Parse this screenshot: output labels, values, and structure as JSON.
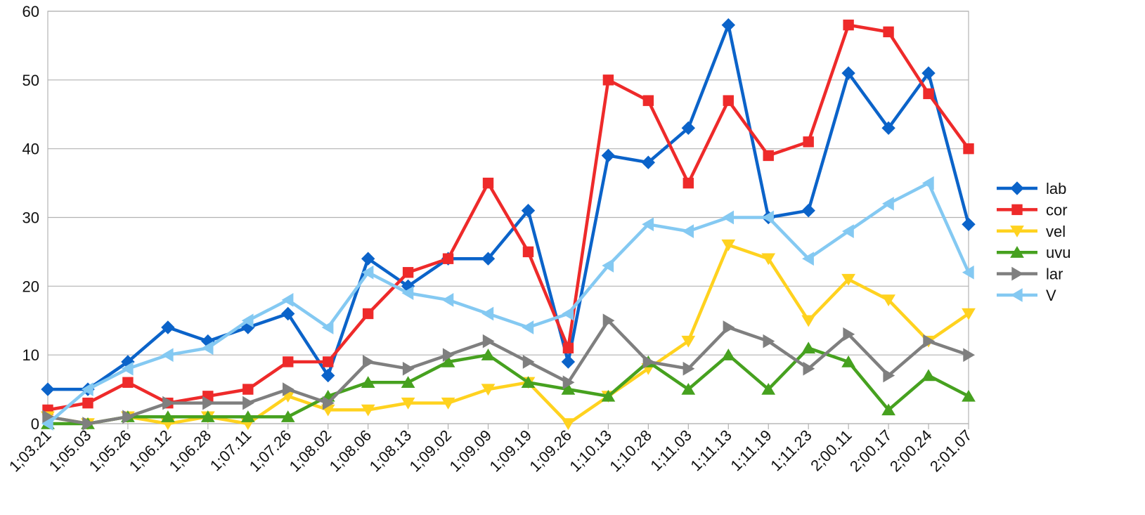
{
  "chart_data": {
    "type": "line",
    "title": "",
    "xlabel": "",
    "ylabel": "",
    "ylim": [
      0,
      60
    ],
    "yticks": [
      0,
      10,
      20,
      30,
      40,
      50,
      60
    ],
    "grid": "horizontal",
    "legend_position": "right",
    "categories": [
      "1;03.21",
      "1;05.03",
      "1;05.26",
      "1;06.12",
      "1;06.28",
      "1;07.11",
      "1;07.26",
      "1;08.02",
      "1;08.06",
      "1;08.13",
      "1;09.02",
      "1;09.09",
      "1;09.19",
      "1;09.26",
      "1;10.13",
      "1;10.28",
      "1;11.03",
      "1;11.13",
      "1;11.19",
      "1;11.23",
      "2;00.11",
      "2;00.17",
      "2;00.24",
      "2;01.07"
    ],
    "series": [
      {
        "name": "lab",
        "color": "#0b63c9",
        "marker": "diamond",
        "values": [
          5,
          5,
          9,
          14,
          12,
          14,
          16,
          7,
          24,
          20,
          24,
          24,
          31,
          9,
          39,
          38,
          43,
          58,
          30,
          31,
          51,
          43,
          51,
          29
        ]
      },
      {
        "name": "cor",
        "color": "#ee2a2a",
        "marker": "square",
        "values": [
          2,
          3,
          6,
          3,
          4,
          5,
          9,
          9,
          16,
          22,
          24,
          35,
          25,
          11,
          50,
          47,
          35,
          47,
          39,
          41,
          58,
          57,
          48,
          40
        ]
      },
      {
        "name": "vel",
        "color": "#ffd21f",
        "marker": "triangle-down",
        "values": [
          1,
          0,
          1,
          0,
          1,
          0,
          4,
          2,
          2,
          3,
          3,
          5,
          6,
          0,
          4,
          8,
          12,
          26,
          24,
          15,
          21,
          18,
          12,
          16
        ]
      },
      {
        "name": "uvu",
        "color": "#46a11f",
        "marker": "triangle-up",
        "values": [
          0,
          0,
          1,
          1,
          1,
          1,
          1,
          4,
          6,
          6,
          9,
          10,
          6,
          5,
          4,
          9,
          5,
          10,
          5,
          11,
          9,
          2,
          7,
          4
        ]
      },
      {
        "name": "lar",
        "color": "#7f7f7f",
        "marker": "triangle-right",
        "values": [
          1,
          0,
          1,
          3,
          3,
          3,
          5,
          3,
          9,
          8,
          10,
          12,
          9,
          6,
          15,
          9,
          8,
          14,
          12,
          8,
          13,
          7,
          12,
          10
        ]
      },
      {
        "name": "V",
        "color": "#84c9f2",
        "marker": "triangle-left",
        "values": [
          0,
          5,
          8,
          10,
          11,
          15,
          18,
          14,
          22,
          19,
          18,
          16,
          14,
          16,
          23,
          29,
          28,
          30,
          30,
          24,
          28,
          32,
          35,
          22
        ]
      }
    ]
  }
}
